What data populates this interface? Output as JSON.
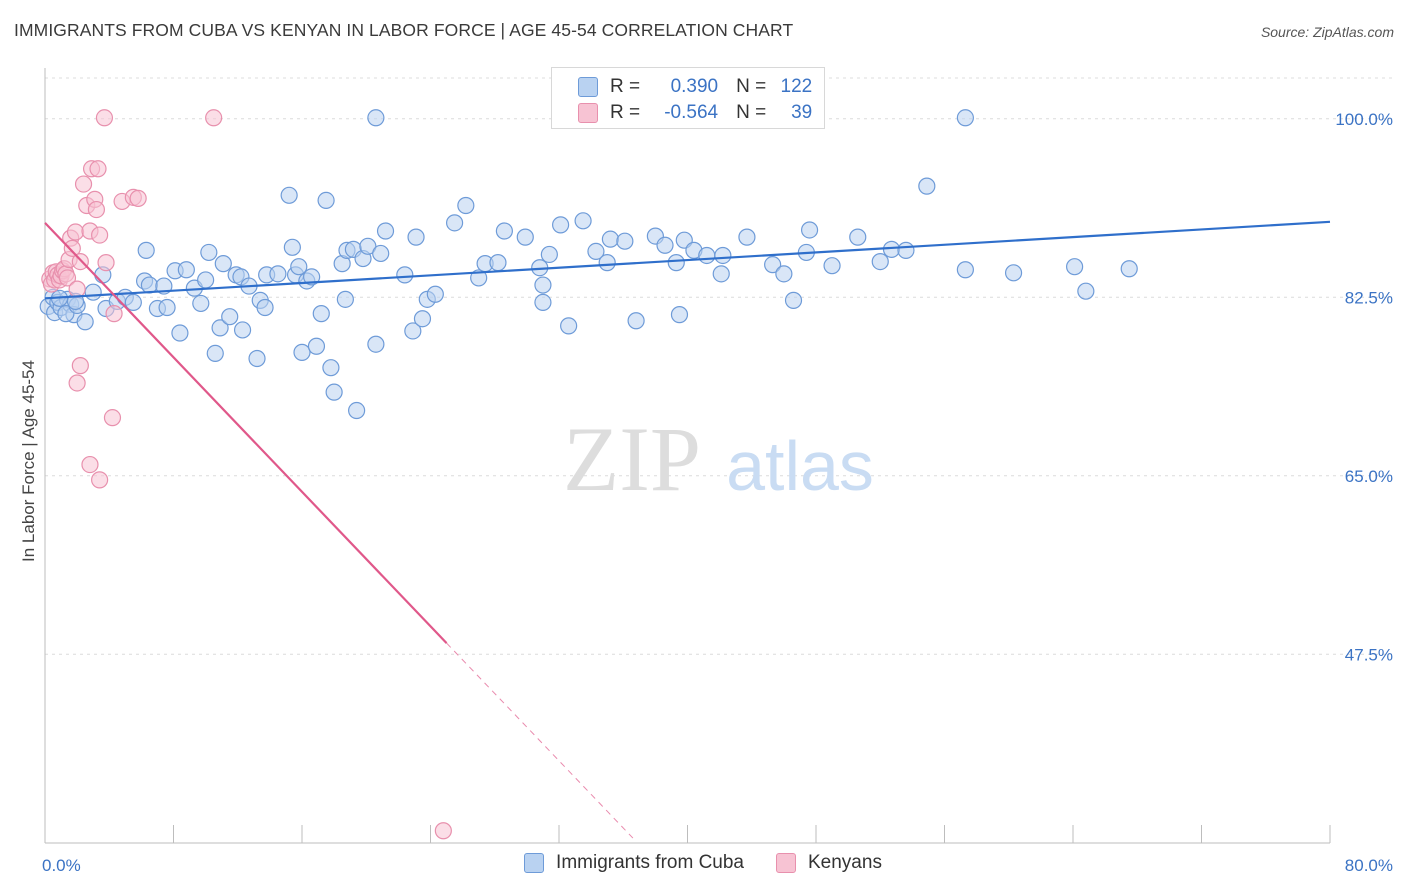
{
  "title": "IMMIGRANTS FROM CUBA VS KENYAN IN LABOR FORCE | AGE 45-54 CORRELATION CHART",
  "source": "Source: ZipAtlas.com",
  "watermark": {
    "zip": "ZIP",
    "atlas": "atlas"
  },
  "legend": {
    "r_label": "R =",
    "n_label": "N =",
    "entries": [
      {
        "r": "0.390",
        "n": "122",
        "fill": "#b9d2f1",
        "stroke": "#6e9bd8"
      },
      {
        "r": "-0.564",
        "n": "39",
        "fill": "#f7c3d3",
        "stroke": "#e890ad"
      }
    ]
  },
  "chart_data": {
    "type": "scatter",
    "xlabel": "",
    "ylabel": "In Labor Force | Age 45-54",
    "xlim": [
      0,
      80
    ],
    "ylim": [
      29,
      104
    ],
    "x_tick_labels": [
      {
        "value": 0,
        "label": "0.0%"
      },
      {
        "value": 80,
        "label": "80.0%"
      }
    ],
    "y_tick_labels": [
      {
        "value": 100,
        "label": "100.0%"
      },
      {
        "value": 82.5,
        "label": "82.5%"
      },
      {
        "value": 65,
        "label": "65.0%"
      },
      {
        "value": 47.5,
        "label": "47.5%"
      }
    ],
    "grid": true,
    "legend_position": "top-center",
    "colors": {
      "blue": "#3b73c4",
      "pink": "#e0588a",
      "blue_line": "#2f6fcb",
      "pink_line": "#e0588a",
      "tick_text": "#3b73c4"
    },
    "series": [
      {
        "name": "Immigrants from Cuba",
        "color": "#6e9bd8",
        "fill": "#b9d2f1",
        "points": [
          [
            0.2,
            81.6
          ],
          [
            0.5,
            82.5
          ],
          [
            0.6,
            81.0
          ],
          [
            0.8,
            82.0
          ],
          [
            1.0,
            81.5
          ],
          [
            1.4,
            82.3
          ],
          [
            1.6,
            81.8
          ],
          [
            1.8,
            80.8
          ],
          [
            0.9,
            82.4
          ],
          [
            1.3,
            80.9
          ],
          [
            2.0,
            81.7
          ],
          [
            2.5,
            80.1
          ],
          [
            3.0,
            83.0
          ],
          [
            3.6,
            84.7
          ],
          [
            3.8,
            81.4
          ],
          [
            4.5,
            82.1
          ],
          [
            5.0,
            82.5
          ],
          [
            5.5,
            82.0
          ],
          [
            6.2,
            84.1
          ],
          [
            6.3,
            87.1
          ],
          [
            6.5,
            83.7
          ],
          [
            7.0,
            81.4
          ],
          [
            7.4,
            83.6
          ],
          [
            7.6,
            81.5
          ],
          [
            8.1,
            85.1
          ],
          [
            8.4,
            79.0
          ],
          [
            8.8,
            85.2
          ],
          [
            9.3,
            83.4
          ],
          [
            9.7,
            81.9
          ],
          [
            10.0,
            84.2
          ],
          [
            10.2,
            86.9
          ],
          [
            10.6,
            77.0
          ],
          [
            10.9,
            79.5
          ],
          [
            11.1,
            85.8
          ],
          [
            11.5,
            80.6
          ],
          [
            11.9,
            84.7
          ],
          [
            12.2,
            84.5
          ],
          [
            12.3,
            79.3
          ],
          [
            12.7,
            83.6
          ],
          [
            13.2,
            76.5
          ],
          [
            13.4,
            82.2
          ],
          [
            13.7,
            81.5
          ],
          [
            13.8,
            84.7
          ],
          [
            14.5,
            84.8
          ],
          [
            15.2,
            92.5
          ],
          [
            15.4,
            87.4
          ],
          [
            15.6,
            84.7
          ],
          [
            15.8,
            85.5
          ],
          [
            16.0,
            77.1
          ],
          [
            16.3,
            84.1
          ],
          [
            16.6,
            84.5
          ],
          [
            16.9,
            77.7
          ],
          [
            17.2,
            80.9
          ],
          [
            17.5,
            92.0
          ],
          [
            17.8,
            75.6
          ],
          [
            18.0,
            73.2
          ],
          [
            18.5,
            85.8
          ],
          [
            18.7,
            82.3
          ],
          [
            18.8,
            87.1
          ],
          [
            19.2,
            87.2
          ],
          [
            19.4,
            71.4
          ],
          [
            19.8,
            86.3
          ],
          [
            20.1,
            87.5
          ],
          [
            20.6,
            77.9
          ],
          [
            20.9,
            86.8
          ],
          [
            21.2,
            89.0
          ],
          [
            22.4,
            84.7
          ],
          [
            22.9,
            79.2
          ],
          [
            23.1,
            88.4
          ],
          [
            23.5,
            80.4
          ],
          [
            23.8,
            82.3
          ],
          [
            24.3,
            82.8
          ],
          [
            25.5,
            89.8
          ],
          [
            26.2,
            91.5
          ],
          [
            27.0,
            84.4
          ],
          [
            27.4,
            85.8
          ],
          [
            28.2,
            85.9
          ],
          [
            28.6,
            89.0
          ],
          [
            29.9,
            88.4
          ],
          [
            30.8,
            85.4
          ],
          [
            31.0,
            83.7
          ],
          [
            31.0,
            82.0
          ],
          [
            31.4,
            86.7
          ],
          [
            32.1,
            89.6
          ],
          [
            32.6,
            79.7
          ],
          [
            33.5,
            90.0
          ],
          [
            34.3,
            87.0
          ],
          [
            35.0,
            85.9
          ],
          [
            35.2,
            88.2
          ],
          [
            36.1,
            88.0
          ],
          [
            36.8,
            80.2
          ],
          [
            38.0,
            88.5
          ],
          [
            38.6,
            87.6
          ],
          [
            39.3,
            85.9
          ],
          [
            39.5,
            80.8
          ],
          [
            39.8,
            88.1
          ],
          [
            40.4,
            87.1
          ],
          [
            41.2,
            86.6
          ],
          [
            42.1,
            84.8
          ],
          [
            42.2,
            86.6
          ],
          [
            43.7,
            88.4
          ],
          [
            45.3,
            85.7
          ],
          [
            46.0,
            84.8
          ],
          [
            46.6,
            82.2
          ],
          [
            47.4,
            86.9
          ],
          [
            47.6,
            89.1
          ],
          [
            49.0,
            85.6
          ],
          [
            50.6,
            88.4
          ],
          [
            52.0,
            86.0
          ],
          [
            52.7,
            87.2
          ],
          [
            53.6,
            87.1
          ],
          [
            54.9,
            93.4
          ],
          [
            57.3,
            85.2
          ],
          [
            60.3,
            84.9
          ],
          [
            64.1,
            85.5
          ],
          [
            64.8,
            83.1
          ],
          [
            67.5,
            85.3
          ],
          [
            20.6,
            100.1
          ],
          [
            57.3,
            100.1
          ],
          [
            1.9,
            82.1
          ]
        ]
      },
      {
        "name": "Kenyans",
        "color": "#e890ad",
        "fill": "#f7c3d3",
        "points": [
          [
            0.3,
            84.3
          ],
          [
            0.4,
            83.8
          ],
          [
            0.5,
            84.9
          ],
          [
            0.6,
            84.2
          ],
          [
            0.7,
            85.0
          ],
          [
            0.8,
            84.7
          ],
          [
            0.9,
            84.2
          ],
          [
            1.0,
            84.6
          ],
          [
            1.1,
            85.1
          ],
          [
            1.2,
            85.3
          ],
          [
            1.3,
            84.8
          ],
          [
            1.4,
            84.4
          ],
          [
            1.5,
            86.2
          ],
          [
            1.6,
            88.3
          ],
          [
            1.7,
            87.3
          ],
          [
            1.9,
            88.9
          ],
          [
            2.0,
            83.3
          ],
          [
            2.2,
            86.0
          ],
          [
            2.4,
            93.6
          ],
          [
            2.6,
            91.5
          ],
          [
            2.8,
            89.0
          ],
          [
            2.9,
            95.1
          ],
          [
            3.1,
            92.1
          ],
          [
            3.2,
            91.1
          ],
          [
            3.3,
            95.1
          ],
          [
            3.4,
            88.6
          ],
          [
            3.8,
            85.9
          ],
          [
            4.3,
            80.9
          ],
          [
            4.8,
            91.9
          ],
          [
            5.5,
            92.3
          ],
          [
            5.8,
            92.2
          ],
          [
            2.2,
            75.8
          ],
          [
            2.0,
            74.1
          ],
          [
            4.2,
            70.7
          ],
          [
            2.8,
            66.1
          ],
          [
            3.4,
            64.6
          ],
          [
            3.7,
            100.1
          ],
          [
            10.5,
            100.1
          ],
          [
            24.8,
            30.2
          ]
        ]
      }
    ],
    "trend_lines": [
      {
        "series": "Immigrants from Cuba",
        "x": [
          0,
          80
        ],
        "y": [
          82.4,
          89.9
        ]
      },
      {
        "series": "Kenyans",
        "x": [
          0,
          25
        ],
        "y": [
          89.8,
          48.6
        ],
        "dashed_extension_to_x": 36.6
      }
    ]
  },
  "bottom_legend": [
    {
      "label": "Immigrants from Cuba",
      "fill": "#b9d2f1",
      "stroke": "#6e9bd8"
    },
    {
      "label": "Kenyans",
      "fill": "#f7c3d3",
      "stroke": "#e890ad"
    }
  ]
}
